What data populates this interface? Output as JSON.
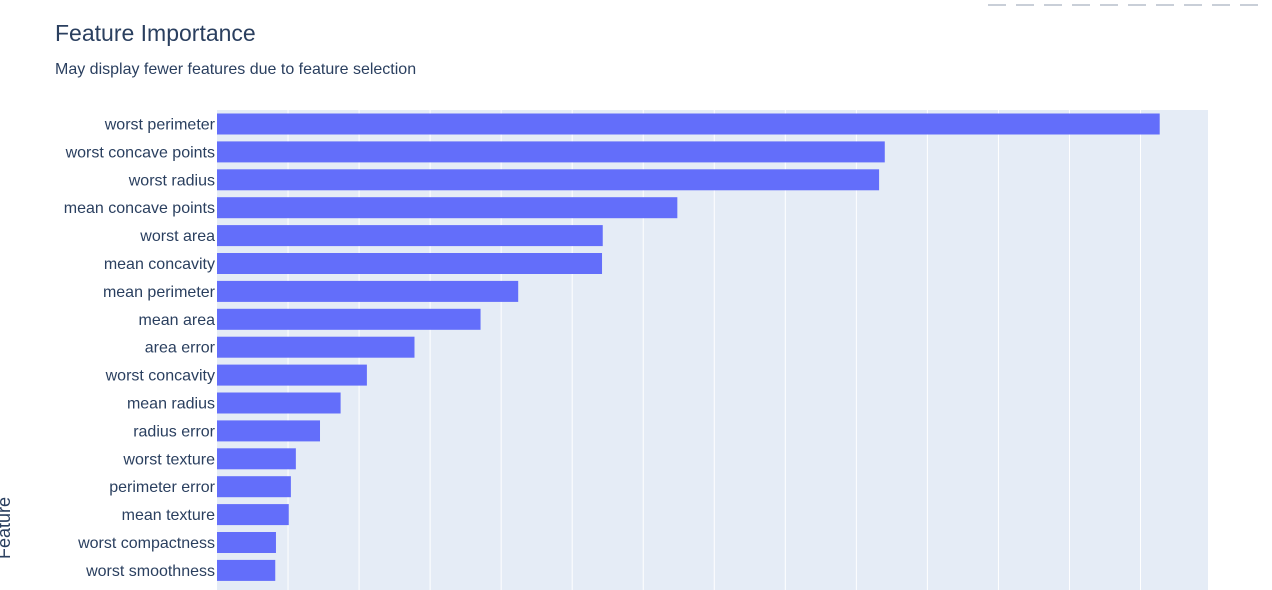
{
  "chart_data": {
    "type": "bar",
    "orientation": "horizontal",
    "title": "Feature Importance",
    "subtitle": "May display fewer features due to feature selection",
    "ylabel": "Feature",
    "xlabel": "",
    "categories": [
      "worst perimeter",
      "worst concave points",
      "worst radius",
      "mean concave points",
      "worst area",
      "mean concavity",
      "mean perimeter",
      "mean area",
      "area error",
      "worst concavity",
      "mean radius",
      "radius error",
      "worst texture",
      "perimeter error",
      "mean texture",
      "worst compactness",
      "worst smoothness"
    ],
    "values": [
      0.1327,
      0.094,
      0.0932,
      0.0648,
      0.0543,
      0.0542,
      0.0424,
      0.0371,
      0.0278,
      0.0211,
      0.0174,
      0.0145,
      0.0111,
      0.0104,
      0.0101,
      0.0083,
      0.0082
    ],
    "xlim": [
      0,
      0.1395
    ],
    "grid": true,
    "bar_color": "#636efa",
    "plot_bg": "#e5ecf6",
    "grid_color": "#ffffff",
    "text_color": "#2a3f5f"
  },
  "modebar": {
    "icons": [
      "camera-icon",
      "zoom-icon",
      "pan-icon",
      "box-select-icon",
      "lasso-icon",
      "zoom-in-icon",
      "zoom-out-icon",
      "autoscale-icon",
      "reset-axes-icon",
      "plotly-logo-icon"
    ]
  }
}
